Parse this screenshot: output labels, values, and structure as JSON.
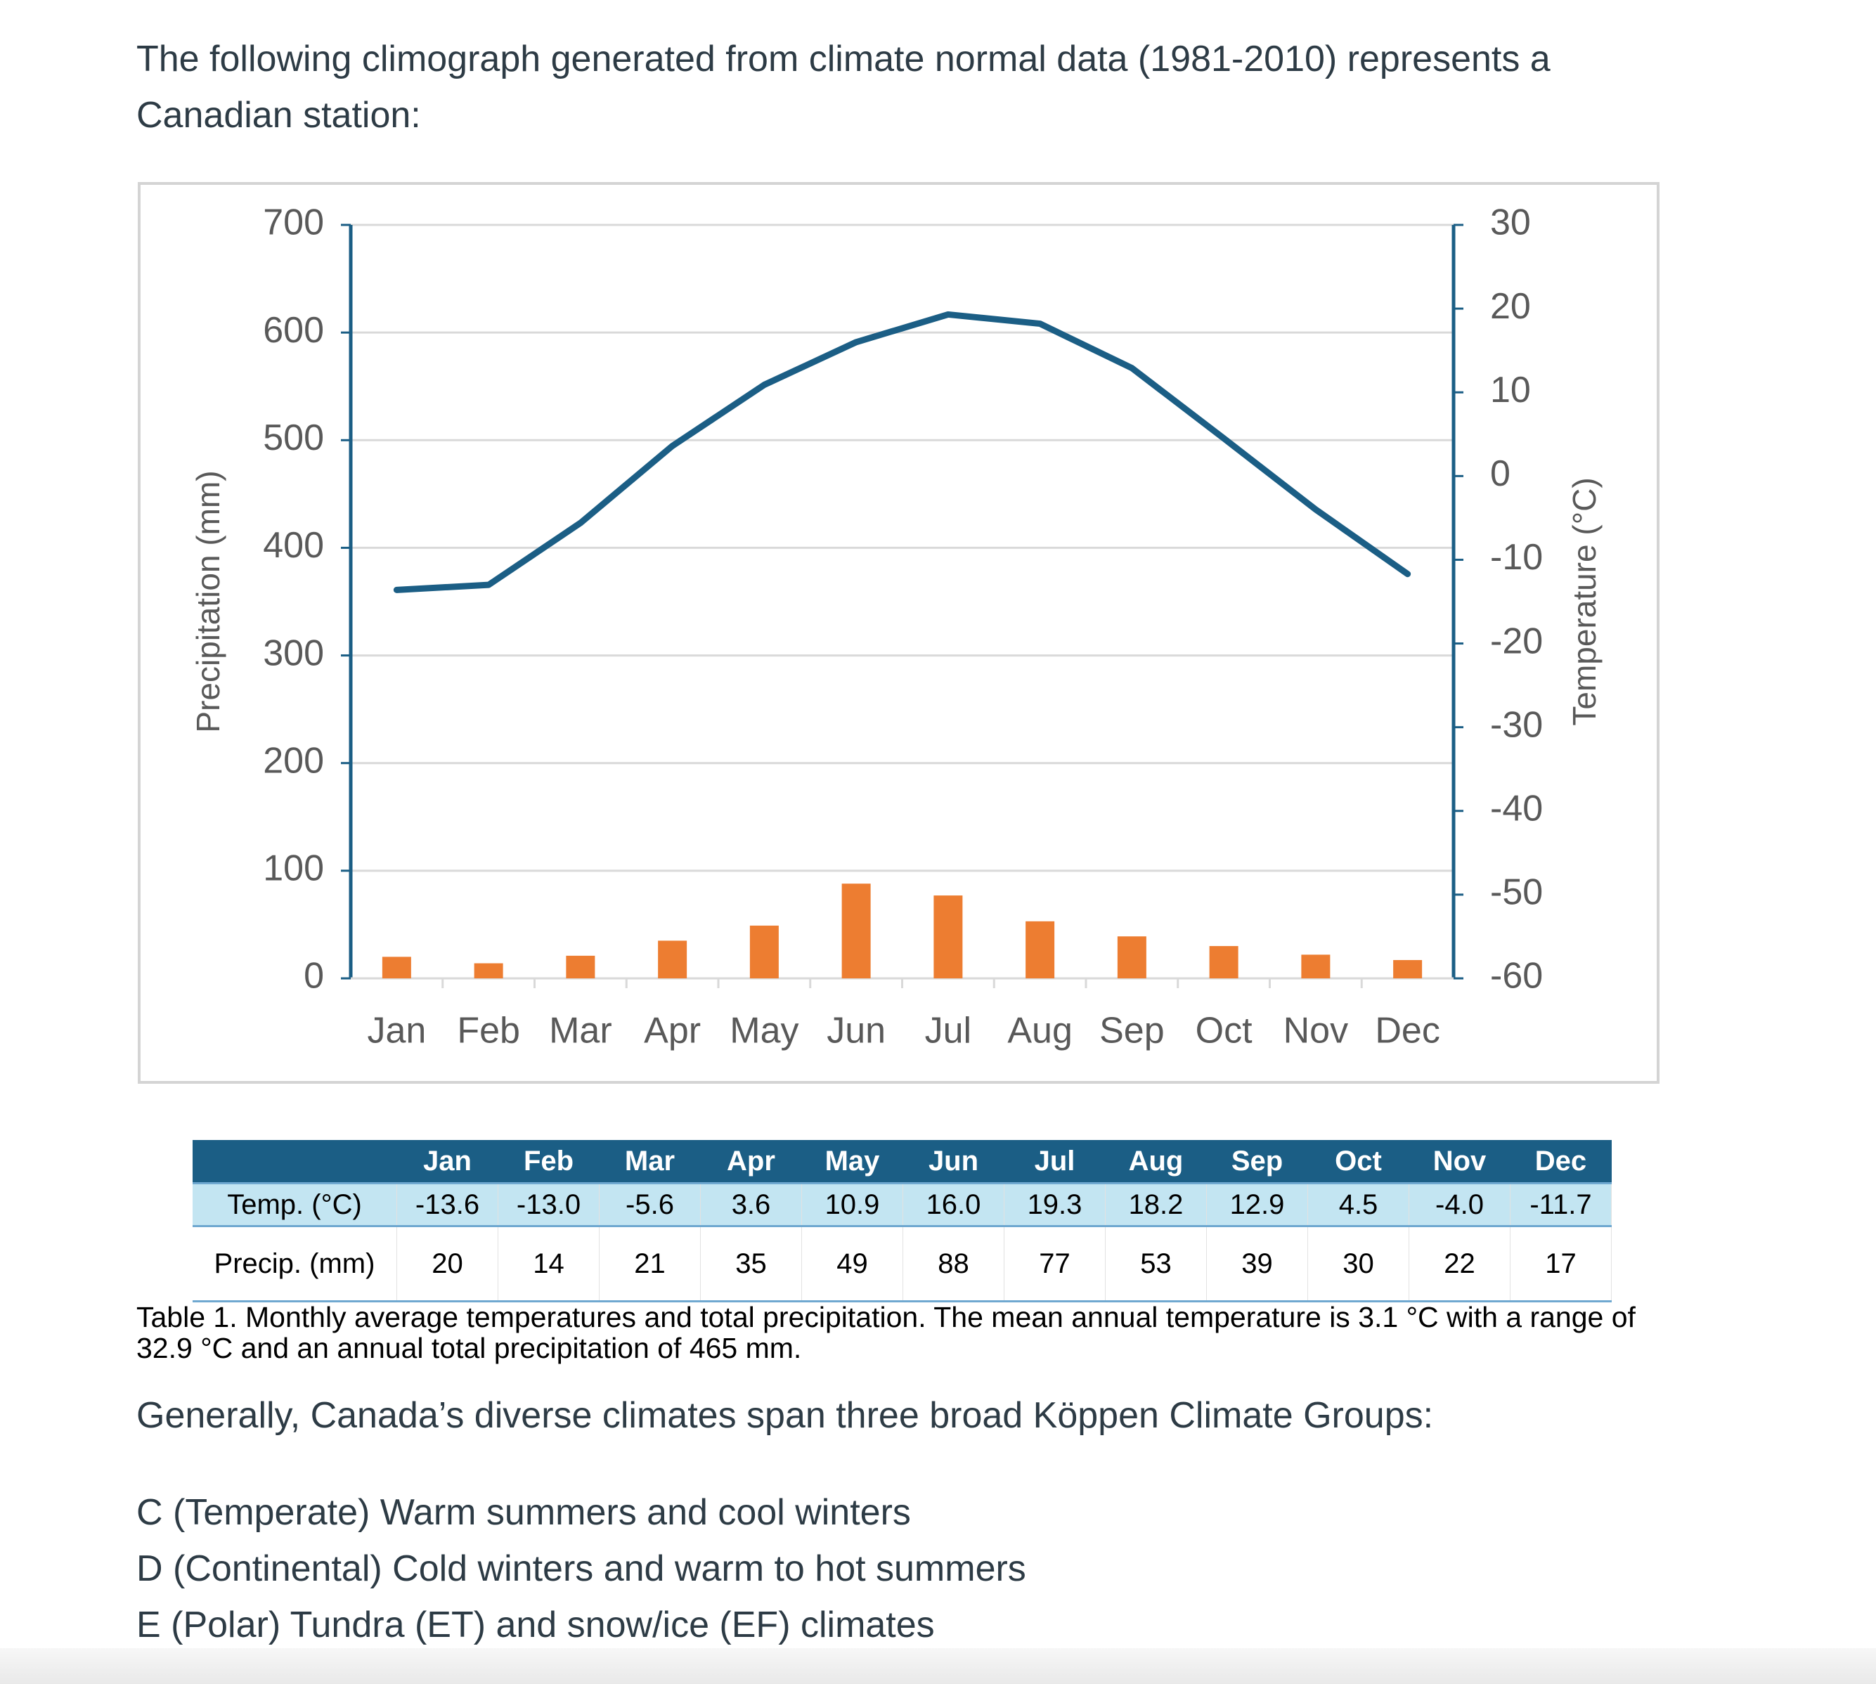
{
  "question": {
    "title": "The following climograph generated from climate normal data (1981-2010) represents a Canadian station:"
  },
  "chart_data": {
    "type": "bar",
    "categories": [
      "Jan",
      "Feb",
      "Mar",
      "Apr",
      "May",
      "Jun",
      "Jul",
      "Aug",
      "Sep",
      "Oct",
      "Nov",
      "Dec"
    ],
    "series": [
      {
        "color": "#ed7d31",
        "values": [
          20,
          14,
          21,
          35,
          49,
          88,
          77,
          53,
          39,
          30,
          22,
          17
        ]
      },
      {
        "type": "line",
        "axis": "y2",
        "color": "#1b5e85",
        "values": [
          -13.6,
          -13.0,
          -5.6,
          3.6,
          10.9,
          16.0,
          19.3,
          18.2,
          12.9,
          4.5,
          -4.0,
          -11.7
        ]
      }
    ],
    "ylabel": "Precipitation (mm)",
    "y2label": "Temperature (°C)",
    "ylim": [
      0,
      700
    ],
    "yticks": [
      0,
      100,
      200,
      300,
      400,
      500,
      600,
      700
    ],
    "y2lim": [
      -60,
      30
    ],
    "y2ticks": [
      -60,
      -50,
      -40,
      -30,
      -20,
      -10,
      0,
      10,
      20,
      30
    ],
    "grid": true
  },
  "table": {
    "header": [
      "Jan",
      "Feb",
      "Mar",
      "Apr",
      "May",
      "Jun",
      "Jul",
      "Aug",
      "Sep",
      "Oct",
      "Nov",
      "Dec"
    ],
    "rows": [
      {
        "label": "Temp. (°C)",
        "cells": [
          "-13.6",
          "-13.0",
          "-5.6",
          "3.6",
          "10.9",
          "16.0",
          "19.3",
          "18.2",
          "12.9",
          "4.5",
          "-4.0",
          "-11.7"
        ]
      },
      {
        "label": "Precip. (mm)",
        "cells": [
          "20",
          "14",
          "21",
          "35",
          "49",
          "88",
          "77",
          "53",
          "39",
          "30",
          "22",
          "17"
        ]
      }
    ]
  },
  "caption": "Table 1. Monthly average temperatures and total precipitation. The mean annual temperature is 3.1 °C with a range of 32.9 °C and an annual total precipitation of 465 mm.",
  "paragraph": "Generally, Canada’s diverse climates span three broad Köppen Climate Groups:",
  "options": [
    "C (Temperate) Warm summers and cool winters",
    "D (Continental) Cold winters and warm to hot summers",
    "E (Polar) Tundra (ET) and snow/ice (EF) climates"
  ]
}
